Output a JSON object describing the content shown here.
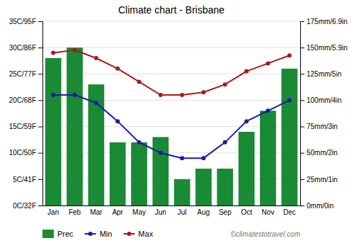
{
  "chart_data": {
    "type": "bar",
    "title": "Climate chart - Brisbane",
    "categories": [
      "Jan",
      "Feb",
      "Mar",
      "Apr",
      "May",
      "Jun",
      "Jul",
      "Aug",
      "Sep",
      "Oct",
      "Nov",
      "Dec"
    ],
    "series": [
      {
        "name": "Prec",
        "type": "bar",
        "axis": "y2",
        "color": "#1a8a35",
        "values": [
          140,
          150,
          115,
          60,
          60,
          65,
          25,
          35,
          35,
          70,
          90,
          130
        ]
      },
      {
        "name": "Min",
        "type": "line",
        "marker": "circle",
        "color": "#1a1aaa",
        "values": [
          21,
          21,
          19.5,
          16,
          12,
          10,
          9,
          9,
          12,
          16,
          18,
          20
        ]
      },
      {
        "name": "Max",
        "type": "line",
        "marker": "circle",
        "color": "#aa1a1a",
        "values": [
          29,
          29.5,
          28,
          26,
          23.5,
          21,
          21,
          21.5,
          23,
          25.5,
          27,
          28.5
        ]
      }
    ],
    "ylim": [
      0,
      35
    ],
    "yticks": [
      {
        "value": 0,
        "label": "0C/32F"
      },
      {
        "value": 5,
        "label": "5C/41F"
      },
      {
        "value": 10,
        "label": "10C/50F"
      },
      {
        "value": 15,
        "label": "15C/59F"
      },
      {
        "value": 20,
        "label": "20C/68F"
      },
      {
        "value": 25,
        "label": "25C/77F"
      },
      {
        "value": 30,
        "label": "30C/86F"
      },
      {
        "value": 35,
        "label": "35C/95F"
      }
    ],
    "y2lim": [
      0,
      175
    ],
    "y2ticks": [
      {
        "value": 0,
        "label": "0mm/0in"
      },
      {
        "value": 25,
        "label": "25mm/1in"
      },
      {
        "value": 50,
        "label": "50mm/2in"
      },
      {
        "value": 75,
        "label": "75mm/3in"
      },
      {
        "value": 100,
        "label": "100mm/4in"
      },
      {
        "value": 125,
        "label": "125mm/5in"
      },
      {
        "value": 150,
        "label": "150mm/5.9in"
      },
      {
        "value": 175,
        "label": "175mm/6.9in"
      }
    ],
    "grid": true,
    "legend": "bottom",
    "annotations": [
      "©climatestotravel.com"
    ]
  }
}
